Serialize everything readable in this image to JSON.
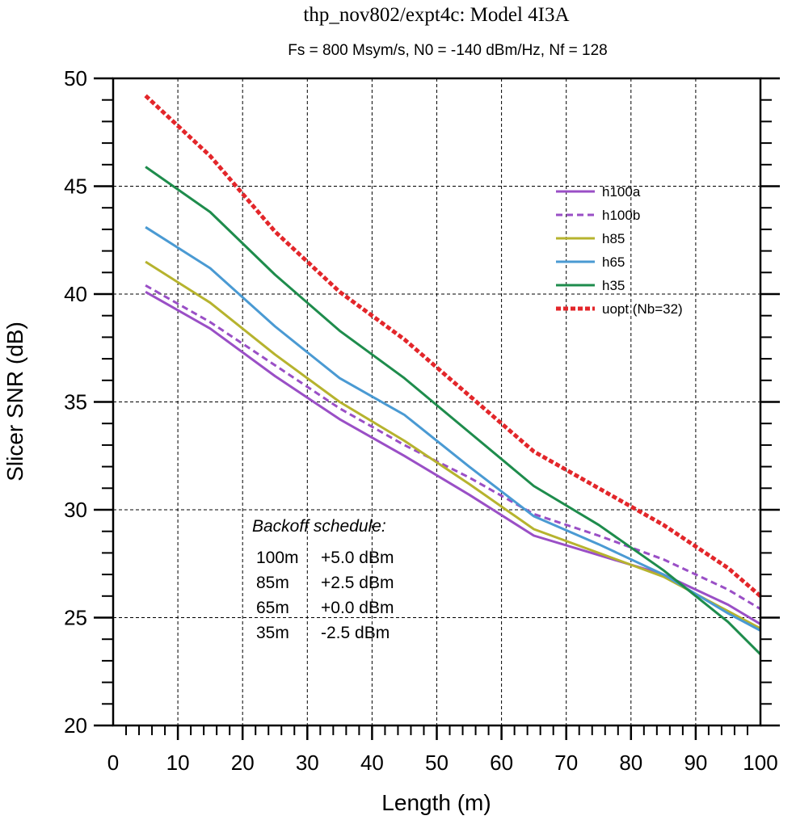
{
  "chart_data": {
    "type": "line",
    "title": "thp_nov802/expt4c: Model 4I3A",
    "subtitle": "Fs = 800 Msym/s,  N0 = -140 dBm/Hz,  Nf = 128",
    "xlabel": "Length (m)",
    "ylabel": "Slicer SNR (dB)",
    "xlim": [
      0,
      100
    ],
    "ylim": [
      20,
      50
    ],
    "xticks": [
      0,
      10,
      20,
      30,
      40,
      50,
      60,
      70,
      80,
      90,
      100
    ],
    "yticks": [
      20,
      25,
      30,
      35,
      40,
      45,
      50
    ],
    "grid": true,
    "legend_position": "upper-right",
    "x": [
      5,
      15,
      25,
      35,
      45,
      55,
      65,
      75,
      85,
      95,
      100
    ],
    "series": [
      {
        "name": "h100a",
        "color": "#9a4fc6",
        "dash": "solid",
        "width": 3,
        "values": [
          40.1,
          38.4,
          36.2,
          34.2,
          32.5,
          30.7,
          28.8,
          27.9,
          27.0,
          25.6,
          24.7
        ]
      },
      {
        "name": "h100b",
        "color": "#9a4fc6",
        "dash": "dashed",
        "width": 3,
        "values": [
          40.4,
          38.7,
          36.7,
          34.7,
          33.0,
          31.5,
          29.8,
          28.8,
          27.7,
          26.3,
          25.4
        ]
      },
      {
        "name": "h85",
        "color": "#b6b32e",
        "dash": "solid",
        "width": 3,
        "values": [
          41.5,
          39.6,
          37.2,
          35.0,
          33.2,
          31.2,
          29.1,
          28.0,
          26.9,
          25.3,
          24.5
        ]
      },
      {
        "name": "h65",
        "color": "#4a9ad3",
        "dash": "solid",
        "width": 3,
        "values": [
          43.1,
          41.2,
          38.5,
          36.1,
          34.4,
          32.0,
          29.7,
          28.4,
          27.0,
          25.2,
          24.4
        ]
      },
      {
        "name": "h35",
        "color": "#1e8c4c",
        "dash": "solid",
        "width": 3,
        "values": [
          45.9,
          43.8,
          40.9,
          38.3,
          36.1,
          33.6,
          31.1,
          29.3,
          27.2,
          24.8,
          23.3
        ]
      },
      {
        "name": "uopt (Nb=32)",
        "color": "#e3262a",
        "dash": "dotted",
        "width": 5,
        "values": [
          49.2,
          46.4,
          42.9,
          40.1,
          37.9,
          35.3,
          32.7,
          31.0,
          29.3,
          27.3,
          26.0
        ]
      }
    ],
    "annotation": {
      "title": "Backoff schedule:",
      "rows": [
        {
          "length": "100m",
          "backoff": "+5.0 dBm"
        },
        {
          "length": "85m",
          "backoff": "+2.5 dBm"
        },
        {
          "length": "65m",
          "backoff": "+0.0 dBm"
        },
        {
          "length": "35m",
          "backoff": "-2.5 dBm"
        }
      ]
    }
  }
}
